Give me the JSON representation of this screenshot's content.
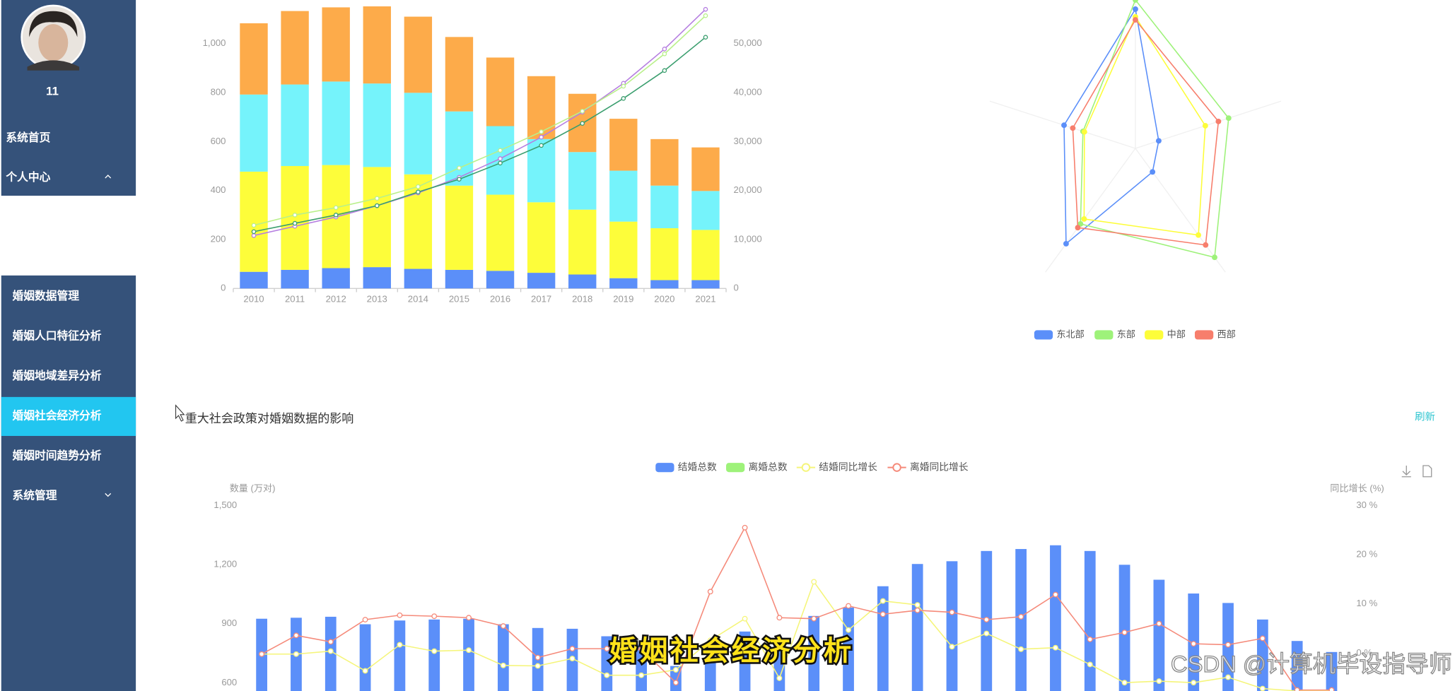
{
  "sidebar": {
    "username": "11",
    "menu_top": [
      {
        "label": "系统首页"
      },
      {
        "label": "个人中心",
        "expanded": true
      }
    ],
    "menu": [
      {
        "label": "婚姻数据管理"
      },
      {
        "label": "婚姻人口特征分析"
      },
      {
        "label": "婚姻地域差异分析"
      },
      {
        "label": "婚姻社会经济分析",
        "active": true
      },
      {
        "label": "婚姻时间趋势分析"
      },
      {
        "label": "系统管理",
        "expanded": false
      }
    ]
  },
  "chart_data": [
    {
      "type": "bar",
      "stacked": true,
      "categories": [
        "2010",
        "2011",
        "2012",
        "2013",
        "2014",
        "2015",
        "2016",
        "2017",
        "2018",
        "2019",
        "2020",
        "2021"
      ],
      "series": [
        {
          "color": "#5b8ff9",
          "values": [
            68,
            76,
            83,
            87,
            80,
            76,
            72,
            64,
            57,
            42,
            34,
            34
          ]
        },
        {
          "color": "#fdfd3a",
          "values": [
            409,
            424,
            421,
            409,
            386,
            344,
            311,
            288,
            265,
            231,
            212,
            205
          ]
        },
        {
          "color": "#75f3fb",
          "values": [
            315,
            333,
            341,
            341,
            333,
            303,
            280,
            258,
            235,
            208,
            174,
            159
          ]
        },
        {
          "color": "#fdab4a",
          "values": [
            291,
            300,
            303,
            315,
            311,
            304,
            280,
            257,
            238,
            212,
            190,
            178
          ]
        },
        {
          "type": "line",
          "axis": "y2",
          "color": "#b57ee0",
          "values": [
            10800,
            12700,
            14600,
            16900,
            19500,
            22700,
            26500,
            30900,
            36000,
            41900,
            48900,
            57000
          ]
        },
        {
          "type": "line",
          "axis": "y2",
          "color": "#b9f08a",
          "values": [
            12900,
            15000,
            16500,
            18400,
            20800,
            24600,
            28200,
            32000,
            36200,
            41300,
            47900,
            55700
          ]
        },
        {
          "type": "line",
          "axis": "y2",
          "color": "#3a9e6e",
          "values": [
            11600,
            13300,
            15000,
            16900,
            19700,
            22300,
            25600,
            29200,
            33700,
            38800,
            44500,
            51300
          ]
        }
      ],
      "ylim": [
        0,
        1200
      ],
      "yticks": [
        0,
        200,
        400,
        600,
        800,
        {
          "value": 1000,
          "label": "1,000"
        }
      ],
      "y2lim": [
        0,
        60000
      ],
      "y2ticks": [
        0,
        {
          "value": 10000,
          "label": "10,000"
        },
        {
          "value": 20000,
          "label": "20,000"
        },
        {
          "value": 30000,
          "label": "30,000"
        },
        {
          "value": 40000,
          "label": "40,000"
        },
        {
          "value": 50000,
          "label": "50,000"
        }
      ],
      "grid": false
    },
    {
      "type": "radar",
      "rlim": [
        0,
        100
      ],
      "series": [
        {
          "name": "东北部",
          "color": "#5b8ff9",
          "values": [
            91,
            16,
            19,
            77,
            49
          ]
        },
        {
          "name": "东部",
          "color": "#9ef27a",
          "values": [
            97,
            64,
            88,
            61,
            36
          ]
        },
        {
          "name": "中部",
          "color": "#fdfd3a",
          "values": [
            86,
            48,
            70,
            57,
            35
          ]
        },
        {
          "name": "西部",
          "color": "#f77e6c",
          "values": [
            84,
            57,
            78,
            64,
            43
          ]
        }
      ],
      "legend": "bottom"
    },
    {
      "type": "bar",
      "title": "重大社会政策对婚姻数据的影响",
      "action": "刷新",
      "ylabel": "数量 (万对)",
      "y2label": "同比增长 (%)",
      "categories": [
        null,
        null,
        null,
        null,
        null,
        null,
        null,
        null,
        null,
        null,
        null,
        null,
        null,
        null,
        null,
        null,
        null,
        null,
        null,
        null,
        null,
        null,
        null,
        null,
        null,
        null,
        null,
        null,
        null,
        null,
        null,
        null
      ],
      "series": [
        {
          "name": "结婚总数",
          "color": "#5b8ff9",
          "values": [
            925,
            930,
            935,
            897,
            916,
            921,
            925,
            897,
            878,
            874,
            836,
            794,
            685,
            720,
            860,
            760,
            939,
            982,
            1090,
            1203,
            1217,
            1269,
            1279,
            1298,
            1269,
            1199,
            1123,
            1053,
            1005,
            921,
            812,
            756
          ]
        },
        {
          "name": "离婚总数",
          "color": "#9ef27a"
        },
        {
          "name": "结婚同比增长",
          "type": "line",
          "axis": "y2",
          "color": "#f5f57a",
          "values": [
            -0.2,
            -0.2,
            0.4,
            -3.6,
            1.7,
            0.4,
            0.6,
            -2.5,
            -2.6,
            -1.1,
            -4.5,
            -4.5,
            -3.4,
            2.6,
            7.0,
            -5.1,
            14.5,
            4.7,
            10.6,
            9.8,
            1.3,
            4.0,
            0.8,
            1.1,
            -2.3,
            -6.0,
            -5.7,
            -6.0,
            -4.9,
            -7.2,
            -7.7,
            -7.7
          ]
        },
        {
          "name": "离婚同比增长",
          "type": "line",
          "axis": "y2",
          "color": "#f58a7a",
          "values": [
            -0.2,
            3.6,
            2.3,
            6.8,
            7.7,
            7.5,
            7.2,
            5.5,
            -0.9,
            0.9,
            0.9,
            0.8,
            -6.0,
            12.5,
            25.5,
            7.2,
            7.0,
            9.6,
            7.9,
            8.7,
            8.3,
            6.8,
            7.4,
            11.9,
            2.8,
            4.2,
            6.0,
            1.9,
            1.7,
            3.0,
            -7.5,
            -7.5
          ]
        }
      ],
      "ylim": [
        558,
        1500
      ],
      "yticks": [
        600,
        900,
        {
          "value": 1200,
          "label": "1,200"
        },
        {
          "value": 1500,
          "label": "1,500"
        }
      ],
      "y2lim": [
        -7.7,
        30
      ],
      "y2ticks": [
        {
          "value": 0,
          "label": "0 %"
        },
        {
          "value": 10,
          "label": "10 %"
        },
        {
          "value": 20,
          "label": "20 %"
        },
        {
          "value": 30,
          "label": "30 %"
        }
      ],
      "legend": "top",
      "grid": false
    }
  ],
  "overlay": {
    "subtitle": "婚姻社会经济分析",
    "watermark": "CSDN @计算机毕设指导师"
  }
}
